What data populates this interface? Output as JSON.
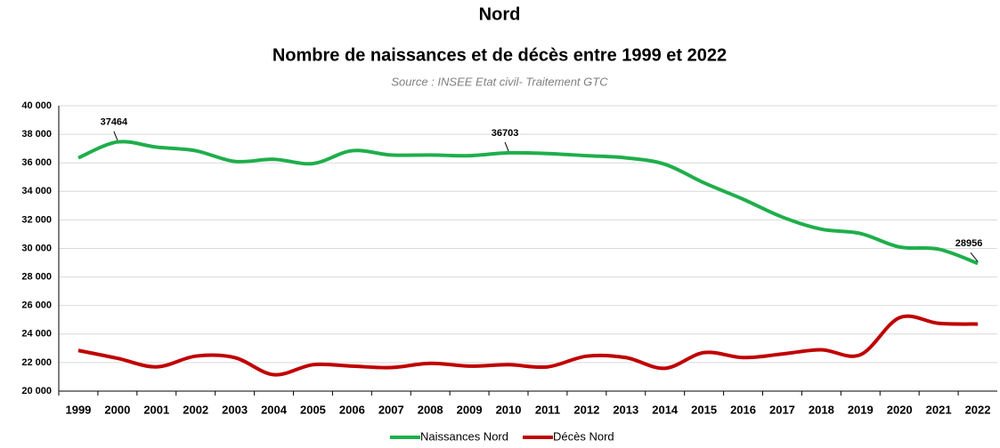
{
  "chart_data": {
    "type": "line",
    "title": "Nord",
    "subtitle": "Nombre de naissances et de décès entre 1999 et 2022",
    "source": "Source : INSEE Etat civil- Traitement GTC",
    "categories": [
      "1999",
      "2000",
      "2001",
      "2002",
      "2003",
      "2004",
      "2005",
      "2006",
      "2007",
      "2008",
      "2009",
      "2010",
      "2011",
      "2012",
      "2013",
      "2014",
      "2015",
      "2016",
      "2017",
      "2018",
      "2019",
      "2020",
      "2021",
      "2022"
    ],
    "series": [
      {
        "name": "Naissances Nord",
        "color": "#1fae4b",
        "values": [
          36350,
          37464,
          37100,
          36850,
          36100,
          36250,
          35950,
          36850,
          36550,
          36550,
          36500,
          36703,
          36650,
          36500,
          36350,
          35900,
          34600,
          33450,
          32200,
          31350,
          31050,
          30100,
          29950,
          28956
        ],
        "value_labels": [
          null,
          "37464",
          null,
          null,
          null,
          null,
          null,
          null,
          null,
          null,
          null,
          "36703",
          null,
          null,
          null,
          null,
          null,
          null,
          null,
          null,
          null,
          null,
          null,
          "28956"
        ]
      },
      {
        "name": "Décès Nord",
        "color": "#c00000",
        "values": [
          22850,
          22300,
          21700,
          22450,
          22350,
          21150,
          21850,
          21750,
          21650,
          21950,
          21750,
          21850,
          21700,
          22450,
          22350,
          21600,
          22700,
          22350,
          22600,
          22900,
          22550,
          25150,
          24750,
          24700
        ]
      }
    ],
    "ylim": [
      20000,
      40000
    ],
    "yticks": [
      {
        "value": 20000,
        "label": "20 000"
      },
      {
        "value": 22000,
        "label": "22 000"
      },
      {
        "value": 24000,
        "label": "24 000"
      },
      {
        "value": 26000,
        "label": "26 000"
      },
      {
        "value": 28000,
        "label": "28 000"
      },
      {
        "value": 30000,
        "label": "30 000"
      },
      {
        "value": 32000,
        "label": "32 000"
      },
      {
        "value": 34000,
        "label": "34 000"
      },
      {
        "value": 36000,
        "label": "36 000"
      },
      {
        "value": 38000,
        "label": "38 000"
      },
      {
        "value": 40000,
        "label": "40 000"
      }
    ],
    "grid": true,
    "legend": "bottom",
    "smooth": true
  }
}
